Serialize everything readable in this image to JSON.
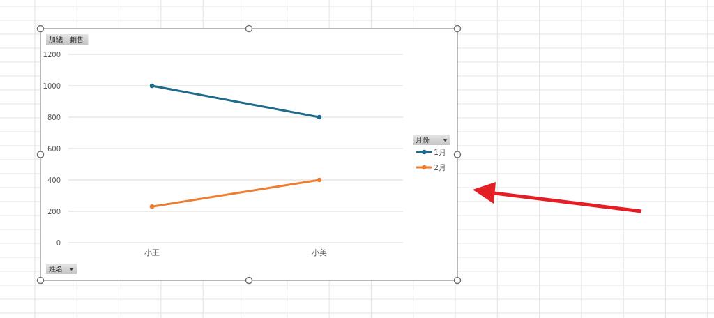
{
  "chart_data": {
    "type": "line",
    "title": "加總 - 銷售",
    "xlabel": "姓名",
    "legend_title": "月份",
    "categories": [
      "小王",
      "小美"
    ],
    "series": [
      {
        "name": "1月",
        "color": "#1f6b8c",
        "values": [
          1000,
          800
        ]
      },
      {
        "name": "2月",
        "color": "#ed7d31",
        "values": [
          230,
          400
        ]
      }
    ],
    "ylim": [
      0,
      1200
    ],
    "yticks": [
      0,
      200,
      400,
      600,
      800,
      1000,
      1200
    ],
    "grid": "y",
    "legend": "right",
    "marker": "circle",
    "line_style": "solid"
  }
}
